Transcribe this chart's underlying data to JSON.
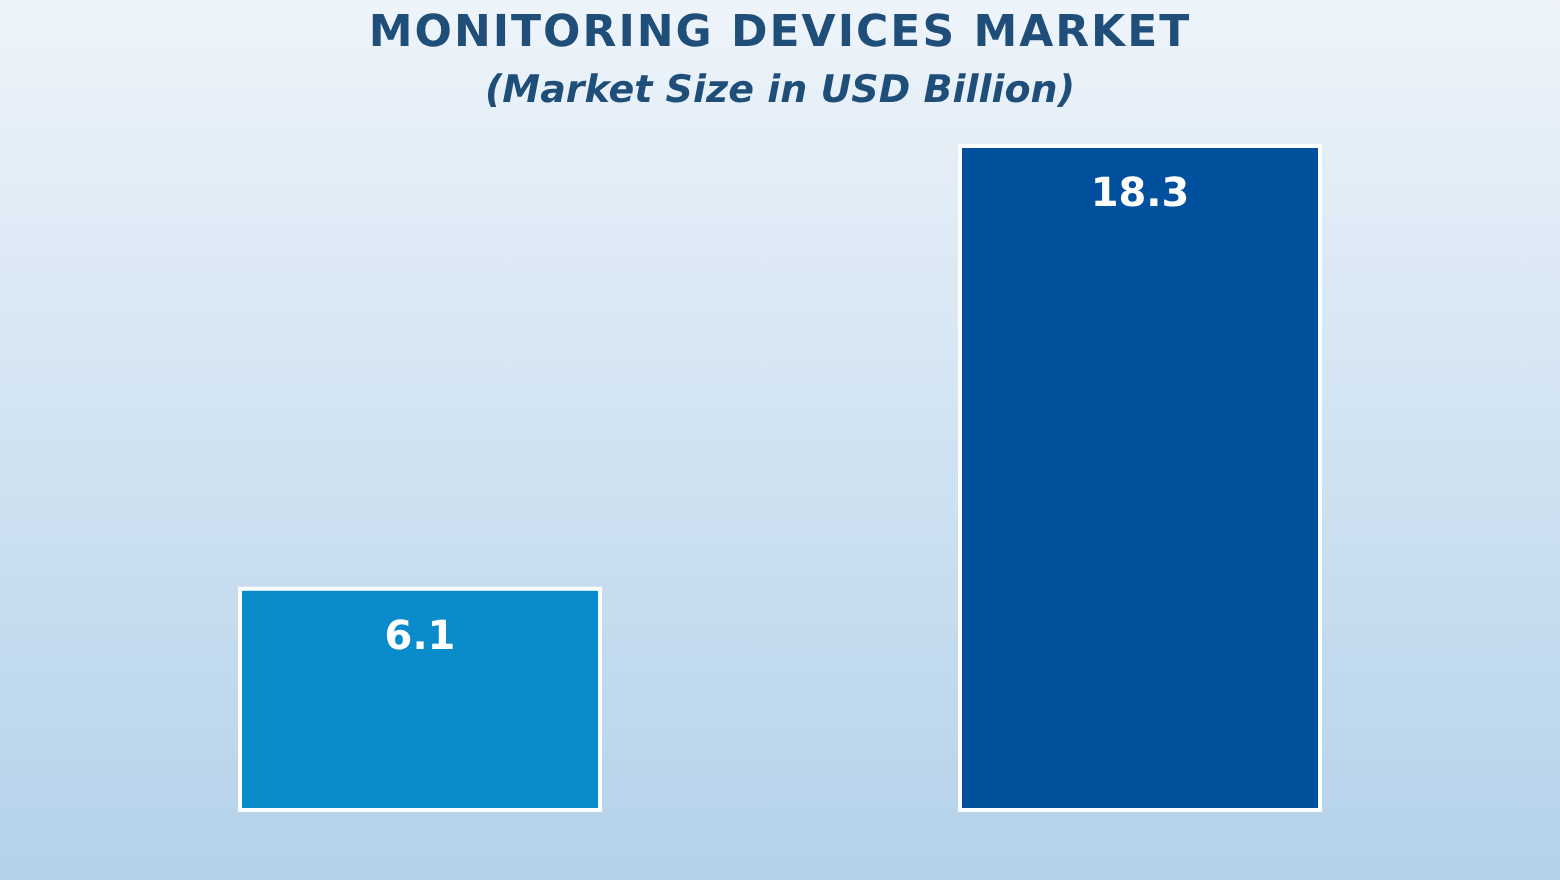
{
  "chart_data": {
    "type": "bar",
    "title": "MONITORING DEVICES MARKET",
    "subtitle": "(Market Size in USD Billion)",
    "categories": [
      null,
      null
    ],
    "values": [
      6.1,
      18.3
    ],
    "colors": [
      "#0a8ccc",
      "#00509e"
    ],
    "data_labels": true,
    "grid": false,
    "legend": false
  }
}
